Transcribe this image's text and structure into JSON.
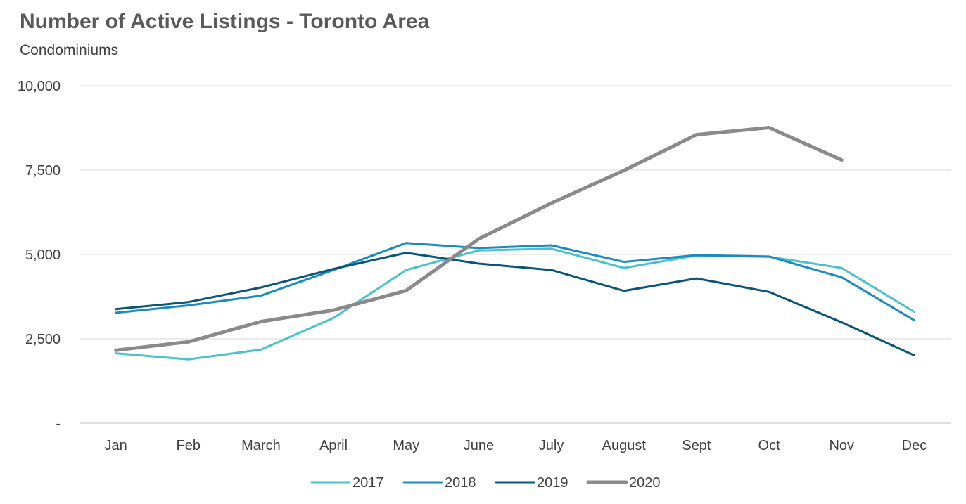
{
  "chart_data": {
    "type": "line",
    "title": "Number of Active Listings - Toronto Area",
    "subtitle": "Condominiums",
    "xlabel": "",
    "ylabel": "",
    "categories": [
      "Jan",
      "Feb",
      "March",
      "April",
      "May",
      "June",
      "July",
      "August",
      "Sept",
      "Oct",
      "Nov",
      "Dec"
    ],
    "ylim": [
      0,
      10000
    ],
    "yticks": [
      0,
      2500,
      5000,
      7500,
      10000
    ],
    "ytick_labels": [
      "-",
      "2,500",
      "5,000",
      "7,500",
      "10,000"
    ],
    "grid": true,
    "legend_position": "bottom",
    "series": [
      {
        "name": "2017",
        "color": "#4bc1c8",
        "values": [
          2070,
          1890,
          2180,
          3120,
          4540,
          5120,
          5170,
          4600,
          4970,
          4930,
          4600,
          3300
        ]
      },
      {
        "name": "2018",
        "color": "#1b8bbf",
        "values": [
          3270,
          3490,
          3780,
          4540,
          5340,
          5190,
          5270,
          4780,
          4980,
          4940,
          4320,
          3050
        ]
      },
      {
        "name": "2019",
        "color": "#0b5577",
        "values": [
          3380,
          3590,
          4020,
          4570,
          5050,
          4730,
          4540,
          3920,
          4290,
          3890,
          2990,
          2010
        ]
      },
      {
        "name": "2020",
        "color": "#8a8a8a",
        "values": [
          2160,
          2410,
          3010,
          3350,
          3930,
          5460,
          6520,
          7490,
          8550,
          8760,
          7800,
          null
        ]
      }
    ]
  }
}
